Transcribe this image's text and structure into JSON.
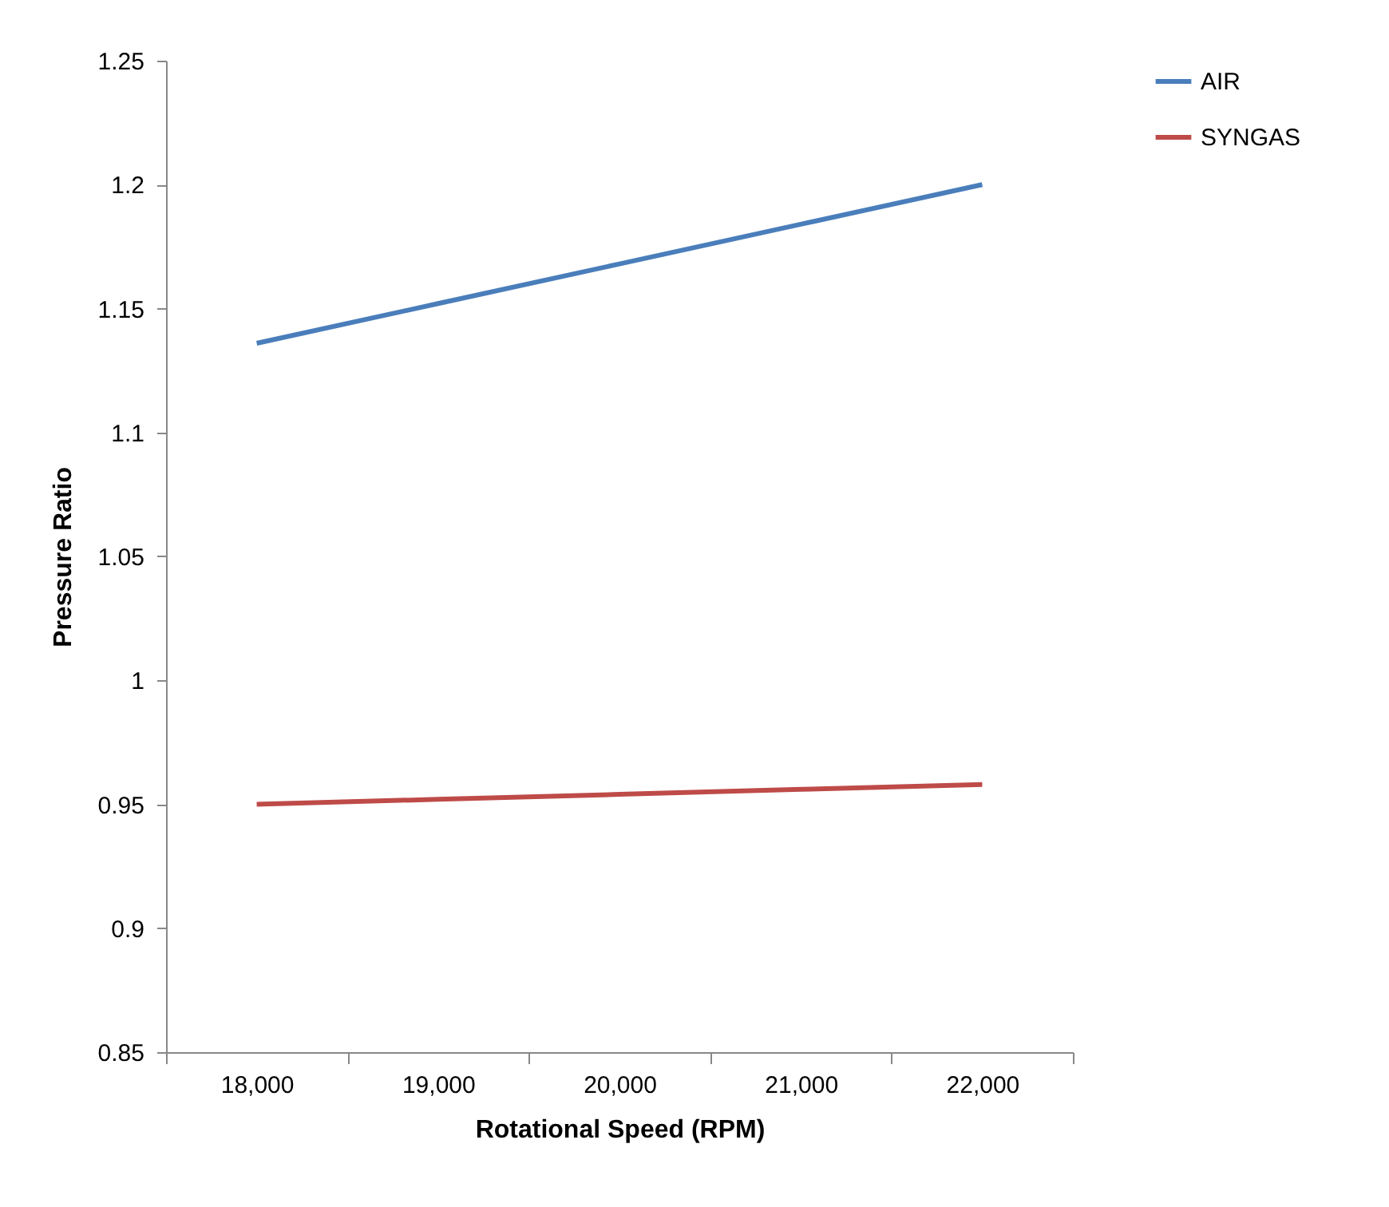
{
  "chart_data": {
    "type": "line",
    "xlabel": "Rotational Speed (RPM)",
    "ylabel": "Pressure Ratio",
    "categories": [
      "18,000",
      "19,000",
      "20,000",
      "21,000",
      "22,000"
    ],
    "series": [
      {
        "name": "AIR",
        "color": "#4a7ebb",
        "values": [
          1.136,
          1.152,
          1.168,
          1.184,
          1.2
        ]
      },
      {
        "name": "SYNGAS",
        "color": "#be4b48",
        "values": [
          0.95,
          0.952,
          0.954,
          0.956,
          0.958
        ]
      }
    ],
    "ylim": [
      0.85,
      1.25
    ],
    "yticks": [
      0.85,
      0.9,
      0.95,
      1,
      1.05,
      1.1,
      1.15,
      1.2,
      1.25
    ],
    "grid": false,
    "legend": "right",
    "marker": "none",
    "line_style": "solid"
  }
}
